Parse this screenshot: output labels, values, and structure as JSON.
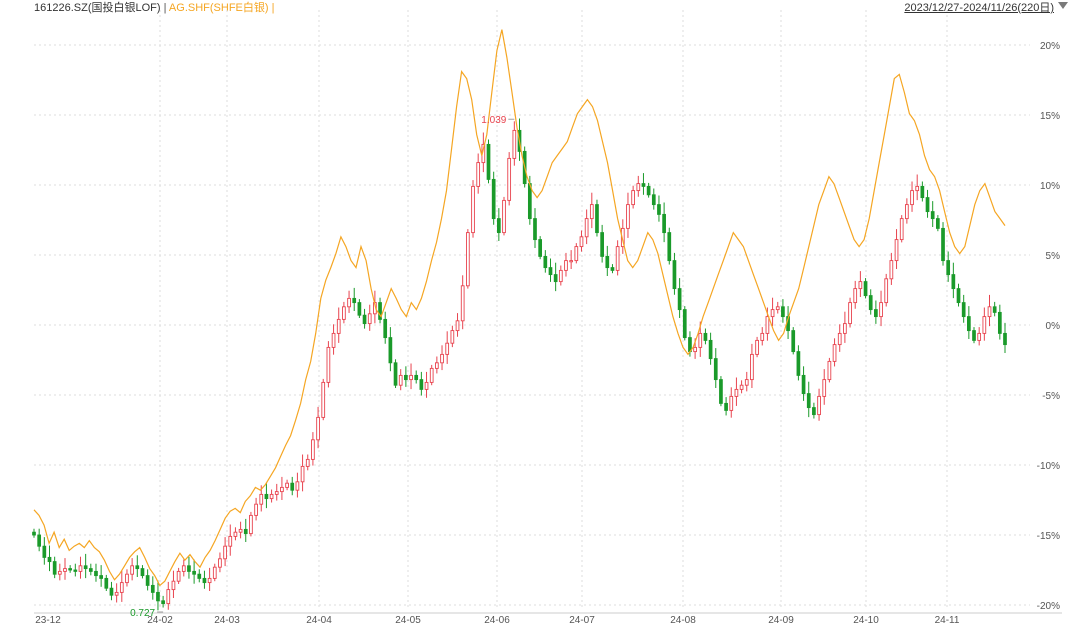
{
  "header": {
    "security": "161226.SZ(国投白银LOF)",
    "separator": "|",
    "compare": "AG.SHF(SHFE白银)",
    "compare_sep": "|",
    "period": "2023/12/27-2024/11/26(220日)"
  },
  "colors": {
    "up": "#e8434e",
    "down": "#1a9a2a",
    "compare_line": "#f5a623",
    "grid": "#dddddd",
    "axis_text": "#555555",
    "max_label": "#e8434e",
    "min_label": "#1a9a2a"
  },
  "chart_data": {
    "type": "candlestick+line",
    "y_unit": "%",
    "ylim": [
      -20,
      20
    ],
    "y_ticks": [
      "20%",
      "15%",
      "10%",
      "5%",
      "0%",
      "-5%",
      "-10%",
      "-15%",
      "-20%"
    ],
    "x_ticks": [
      "23-12",
      "24-02",
      "24-03",
      "24-04",
      "24-05",
      "24-06",
      "24-07",
      "24-08",
      "24-09",
      "24-10",
      "24-11"
    ],
    "grid": true,
    "annotations": {
      "max": "1.039",
      "min": "0.727"
    },
    "series": [
      {
        "name": "161226.SZ(国投白银LOF)",
        "kind": "candlestick",
        "close_pct": [
          -15,
          -15.8,
          -16.6,
          -16.9,
          -17.8,
          -17.6,
          -17.4,
          -17.5,
          -17.6,
          -17.2,
          -17.4,
          -17.6,
          -17.9,
          -18.1,
          -18.8,
          -19.3,
          -19.1,
          -18.4,
          -17.8,
          -17.2,
          -17.4,
          -17.9,
          -18.6,
          -19.1,
          -19.7,
          -19.9,
          -18.9,
          -18.3,
          -17.6,
          -17.2,
          -17.6,
          -17.8,
          -18.1,
          -18.4,
          -18.1,
          -17.3,
          -16.7,
          -15.8,
          -15.1,
          -14.8,
          -14.6,
          -14.9,
          -13.6,
          -12.8,
          -12.1,
          -12.4,
          -12.1,
          -11.9,
          -11.6,
          -11.3,
          -11.8,
          -11.2,
          -10.1,
          -9.6,
          -8.2,
          -6.6,
          -4.1,
          -1.6,
          -0.6,
          0.4,
          1.3,
          1.9,
          1.6,
          0.7,
          0.1,
          0.8,
          1.6,
          0.4,
          -0.9,
          -2.7,
          -4.3,
          -3.6,
          -3.9,
          -3.6,
          -3.9,
          -4.6,
          -4.1,
          -3.1,
          -2.7,
          -2.1,
          -1.3,
          -0.4,
          0.3,
          2.8,
          6.6,
          9.9,
          11.6,
          12.9,
          10.4,
          7.6,
          6.6,
          8.9,
          11.9,
          13.9,
          12.4,
          10.1,
          7.6,
          6.1,
          4.9,
          4.1,
          3.6,
          3.1,
          3.9,
          4.6,
          4.6,
          5.6,
          6.3,
          7.6,
          8.6,
          6.6,
          4.9,
          4.1,
          3.9,
          5.6,
          6.9,
          8.6,
          9.6,
          10.1,
          9.9,
          9.3,
          8.6,
          7.9,
          6.6,
          4.6,
          2.6,
          1.1,
          -0.9,
          -1.9,
          -1.6,
          -0.6,
          -1.1,
          -2.4,
          -3.9,
          -5.6,
          -6.1,
          -5.1,
          -4.6,
          -4.3,
          -3.9,
          -2.1,
          -1.1,
          -0.6,
          0.6,
          1.1,
          1.3,
          0.6,
          -0.4,
          -1.9,
          -3.6,
          -4.9,
          -5.9,
          -6.4,
          -5.1,
          -3.9,
          -2.6,
          -1.4,
          -0.6,
          0.1,
          1.6,
          2.6,
          3.1,
          2.1,
          1.1,
          0.6,
          1.6,
          3.3,
          4.6,
          6.1,
          7.6,
          8.6,
          9.6,
          9.9,
          9.1,
          8.1,
          7.6,
          6.9,
          4.6,
          3.6,
          2.6,
          1.6,
          0.6,
          -0.4,
          -1.1,
          -0.6,
          0.6,
          1.3,
          0.9,
          -0.6,
          -1.4
        ]
      },
      {
        "name": "AG.SHF(SHFE白银)",
        "kind": "line",
        "pct": [
          -13.2,
          -13.6,
          -14.3,
          -15.6,
          -14.8,
          -15.9,
          -15.3,
          -16.1,
          -15.8,
          -15.6,
          -15.9,
          -15.4,
          -15.9,
          -16.2,
          -16.8,
          -17.6,
          -18.2,
          -17.8,
          -17.2,
          -16.6,
          -16.2,
          -15.9,
          -16.6,
          -17.4,
          -17.9,
          -18.6,
          -18.3,
          -17.6,
          -16.9,
          -16.3,
          -16.8,
          -16.4,
          -16.9,
          -17.3,
          -16.6,
          -16.1,
          -15.4,
          -14.6,
          -13.8,
          -13.3,
          -13.1,
          -13.4,
          -12.6,
          -12.2,
          -11.6,
          -11.8,
          -11.4,
          -10.8,
          -10.2,
          -9.4,
          -8.6,
          -7.9,
          -6.8,
          -5.6,
          -3.9,
          -2.6,
          -0.6,
          1.9,
          3.2,
          4.1,
          5.1,
          6.3,
          5.6,
          4.6,
          4.1,
          5.6,
          4.6,
          2.6,
          1.1,
          0.6,
          1.6,
          2.6,
          1.9,
          1.1,
          0.6,
          1.6,
          1.1,
          1.9,
          3.1,
          4.6,
          5.9,
          7.6,
          9.6,
          12.6,
          15.6,
          18.1,
          17.6,
          16.1,
          13.6,
          12.1,
          13.6,
          16.6,
          19.6,
          21.1,
          19.1,
          16.6,
          14.1,
          12.1,
          10.6,
          9.6,
          9.1,
          9.6,
          10.6,
          11.6,
          12.1,
          12.6,
          13.1,
          14.1,
          15.1,
          15.6,
          16.1,
          15.6,
          14.6,
          13.1,
          11.6,
          9.6,
          7.6,
          6.1,
          4.6,
          4.1,
          4.6,
          5.6,
          6.6,
          6.1,
          5.1,
          3.6,
          2.1,
          0.6,
          -0.6,
          -1.6,
          -2.1,
          -1.6,
          -0.6,
          0.6,
          1.6,
          2.6,
          3.6,
          4.6,
          5.6,
          6.6,
          6.1,
          5.6,
          4.6,
          3.6,
          2.6,
          1.6,
          0.6,
          -0.4,
          -1.1,
          -0.6,
          0.6,
          1.6,
          2.6,
          4.1,
          5.6,
          7.1,
          8.6,
          9.6,
          10.6,
          10.1,
          9.1,
          8.1,
          7.1,
          6.1,
          5.6,
          6.1,
          7.6,
          9.6,
          11.6,
          13.6,
          15.6,
          17.6,
          17.9,
          16.6,
          15.1,
          14.6,
          13.6,
          12.1,
          11.1,
          10.6,
          9.6,
          8.1,
          6.6,
          5.6,
          5.1,
          5.6,
          7.1,
          8.6,
          9.6,
          10.1,
          9.1,
          8.1,
          7.6,
          7.1
        ]
      }
    ]
  }
}
